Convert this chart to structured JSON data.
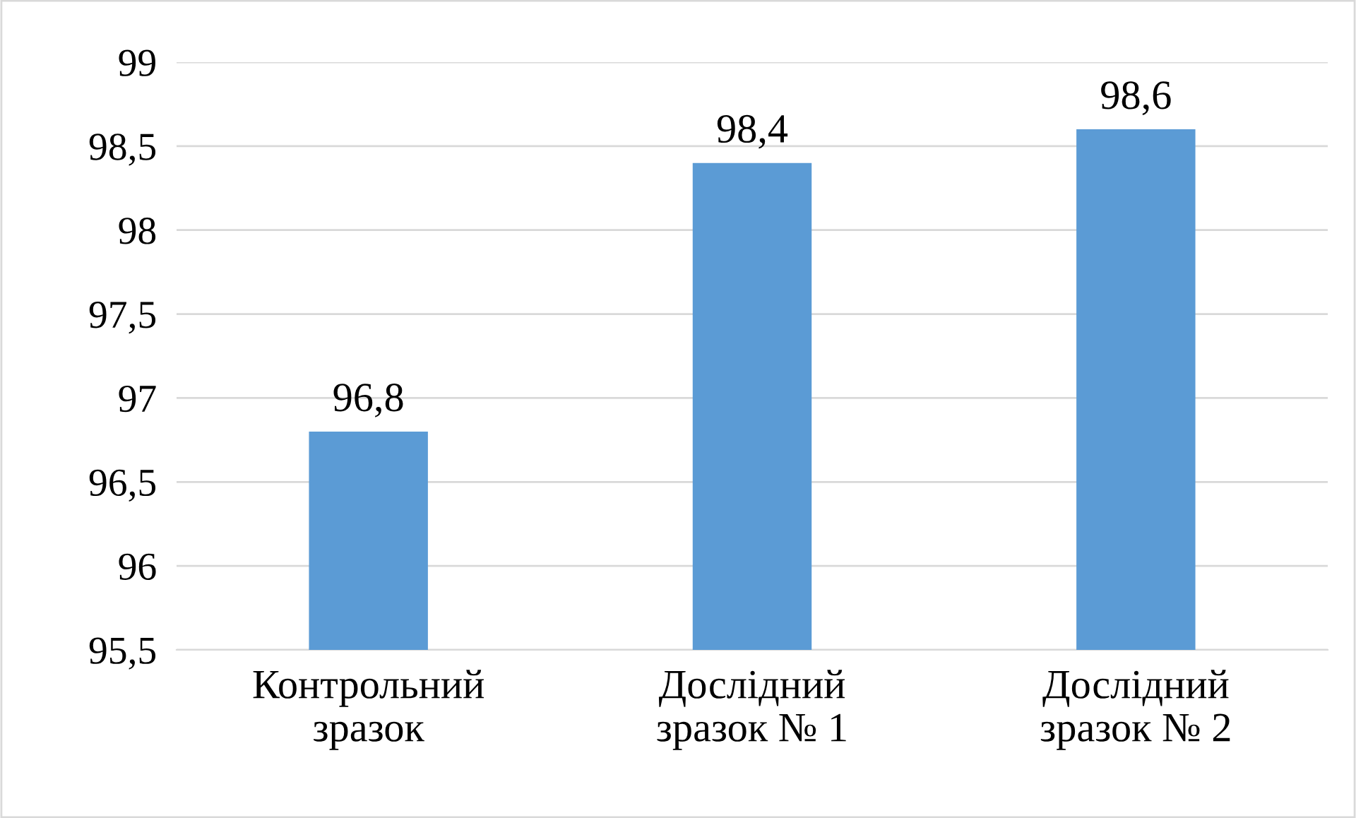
{
  "chart_data": {
    "type": "bar",
    "categories": [
      "Контрольний\nзразок",
      "Дослідний\nзразок № 1",
      "Дослідний\nзразок № 2"
    ],
    "values": [
      96.8,
      98.4,
      98.6
    ],
    "value_labels": [
      "96,8",
      "98,4",
      "98,6"
    ],
    "color": "#5b9bd5",
    "ylim": [
      95.5,
      99
    ],
    "yticks": [
      {
        "value": 95.5,
        "label": "95,5"
      },
      96,
      {
        "value": 96.5,
        "label": "96,5"
      },
      97,
      {
        "value": 97.5,
        "label": "97,5"
      },
      98,
      {
        "value": 98.5,
        "label": "98,5"
      },
      99
    ],
    "grid": "y"
  }
}
